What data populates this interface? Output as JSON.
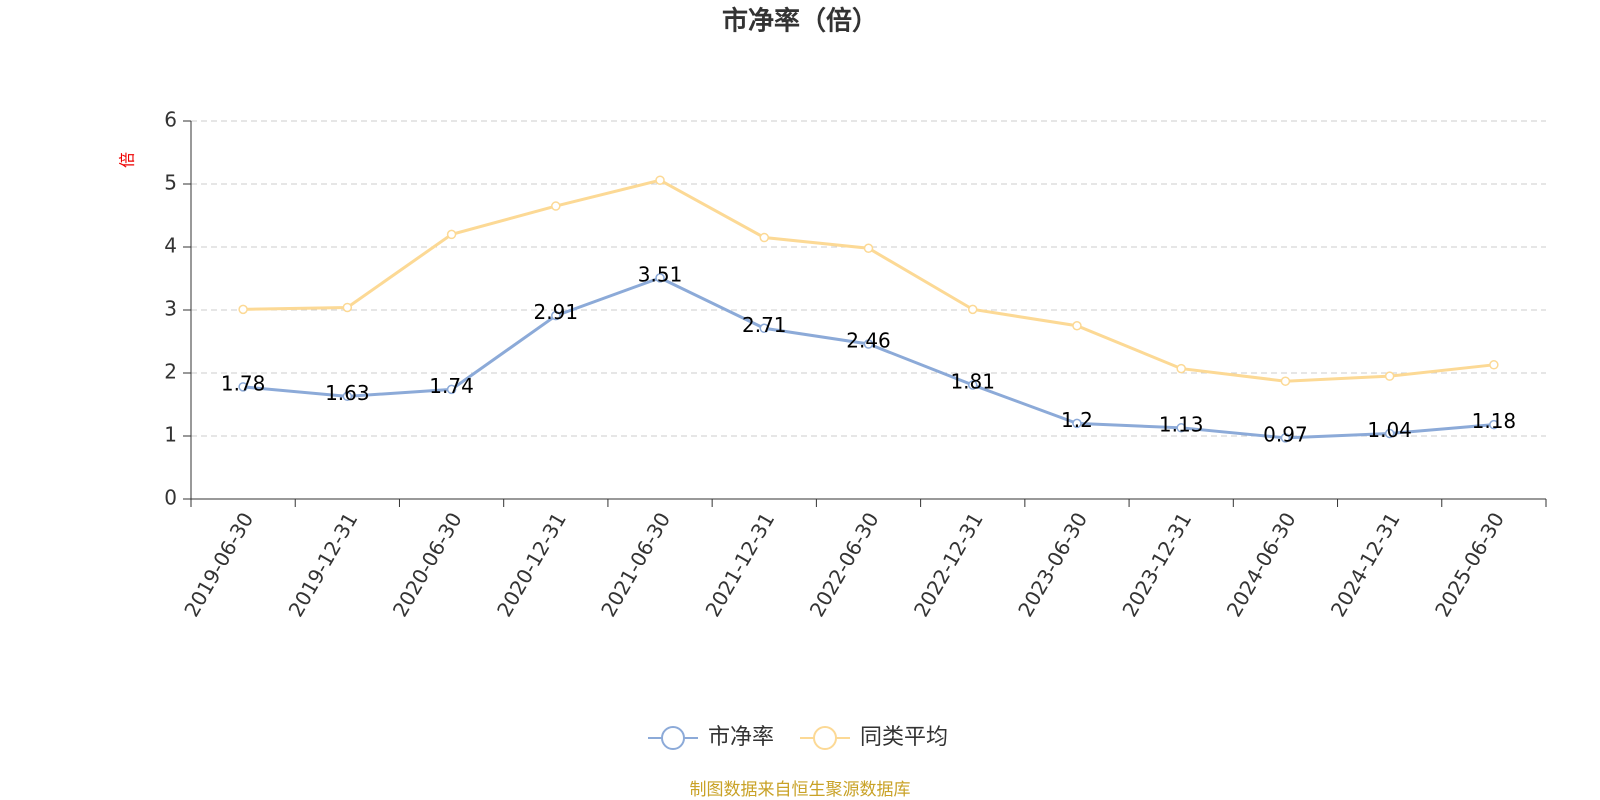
{
  "chart_data": {
    "type": "line",
    "title": "市净率（倍）",
    "y_label": "倍",
    "categories": [
      "2019-06-30",
      "2019-12-31",
      "2020-06-30",
      "2020-12-31",
      "2021-06-30",
      "2021-12-31",
      "2022-06-30",
      "2022-12-31",
      "2023-06-30",
      "2023-12-31",
      "2024-06-30",
      "2024-12-31",
      "2025-06-30"
    ],
    "series": [
      {
        "name": "市净率",
        "color": "#8caad8",
        "values": [
          1.78,
          1.63,
          1.74,
          2.91,
          3.51,
          2.71,
          2.46,
          1.81,
          1.2,
          1.13,
          0.97,
          1.04,
          1.18
        ],
        "labels": true
      },
      {
        "name": "同类平均",
        "color": "#fcd995",
        "values": [
          3.01,
          3.04,
          4.2,
          4.65,
          5.06,
          4.15,
          3.98,
          3.01,
          2.75,
          2.07,
          1.87,
          1.95,
          2.13
        ],
        "labels": false
      }
    ],
    "ylim": [
      0,
      6
    ],
    "yticks": [
      0,
      1,
      2,
      3,
      4,
      5,
      6
    ],
    "grid": true,
    "source": "制图数据来自恒生聚源数据库"
  }
}
